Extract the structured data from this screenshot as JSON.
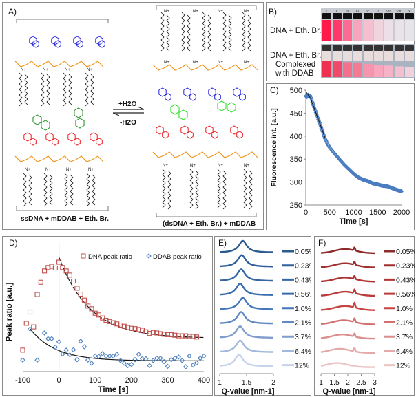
{
  "panel_a": {
    "label": "A)",
    "forward": "+H2O",
    "reverse": "-H2O",
    "left_caption": "ssDNA + mDDAB + Eth. Br.",
    "right_caption": "(dsDNA + Eth. Br.) + mDDAB",
    "colors": {
      "backbone": "#f0961e",
      "base_top": "#2222dd",
      "base_bottom": "#ee1c24",
      "ethidium_left": "#1e8c1e",
      "ethidium_right": "#22dd22",
      "lipid": "#111111"
    }
  },
  "panel_b": {
    "label": "B)",
    "row1_label": "DNA + Eth. Br.",
    "row2_label_lines": [
      "DNA + Eth. Br.",
      "Complexed",
      "with  DDAB"
    ],
    "vial_labels": [
      "I",
      "II",
      "III",
      "IV",
      "V",
      "VI",
      "VII",
      "VIII",
      "IX"
    ],
    "row1_colors": [
      "#ff1a4a",
      "#ff3a6a",
      "#ff6a92",
      "#f7a5bf",
      "#f4c0d0",
      "#efd4de",
      "#ece0e6",
      "#e9e3e7",
      "#e8e5e8"
    ],
    "row2_colors": [
      "#f03050",
      "#f04a6a",
      "#f4708c",
      "#f47a96",
      "#f595ae",
      "#f7a6bd",
      "#f6b2c6",
      "#f4c0d0",
      "#efd2dc"
    ]
  },
  "chart_data": [
    {
      "id": "C",
      "label": "C)",
      "type": "scatter",
      "xlabel": "Time [s]",
      "ylabel": "Fluorescence int. [a.u.]",
      "xlim": [
        0,
        2000
      ],
      "ylim": [
        250,
        500
      ],
      "xticks": [
        "0",
        "500",
        "1000",
        "1500",
        "2000"
      ],
      "yticks": [
        "250",
        "300",
        "350",
        "400",
        "450",
        "500"
      ],
      "x": [
        0,
        25,
        50,
        75,
        100,
        150,
        200,
        250,
        300,
        350,
        400,
        450,
        500,
        600,
        700,
        800,
        900,
        1000,
        1100,
        1200,
        1300,
        1400,
        1500,
        1600,
        1700,
        1800,
        1900,
        2000
      ],
      "y": [
        487,
        485,
        490,
        488,
        487,
        470,
        455,
        440,
        425,
        410,
        395,
        384,
        375,
        362,
        350,
        338,
        328,
        318,
        310,
        305,
        302,
        297,
        295,
        292,
        291,
        287,
        283,
        280
      ],
      "color": "#4a7cc0"
    },
    {
      "id": "D",
      "label": "D)",
      "type": "scatter",
      "xlabel": "Time [s]",
      "ylabel": "Peak ratio [a.u.]",
      "xlim": [
        -100,
        400
      ],
      "ylim": [
        0,
        1
      ],
      "xticks": [
        "-100",
        "0",
        "100",
        "200",
        "300",
        "400"
      ],
      "legend_position": "top-right",
      "series": [
        {
          "name": "DNA peak ratio",
          "color": "#c0504d",
          "x": [
            -100,
            -90,
            -80,
            -70,
            -60,
            -50,
            -40,
            -30,
            -20,
            -10,
            0,
            10,
            20,
            30,
            40,
            50,
            60,
            70,
            80,
            90,
            100,
            110,
            120,
            130,
            140,
            150,
            160,
            170,
            180,
            190,
            200,
            210,
            220,
            230,
            240,
            250,
            260,
            270,
            280,
            290,
            300,
            310,
            320,
            330,
            340,
            350,
            360,
            370,
            380
          ],
          "y": [
            0.18,
            0.405,
            0.5,
            0.375,
            0.647,
            0.75,
            0.845,
            0.874,
            0.884,
            0.87,
            0.919,
            0.874,
            0.845,
            0.81,
            0.76,
            0.7,
            0.65,
            0.6,
            0.55,
            0.527,
            0.49,
            0.475,
            0.45,
            0.43,
            0.42,
            0.41,
            0.4,
            0.39,
            0.38,
            0.37,
            0.363,
            0.36,
            0.353,
            0.347,
            0.334,
            0.32,
            0.328,
            0.324,
            0.318,
            0.313,
            0.31,
            0.309,
            0.305,
            0.3,
            0.3,
            0.3,
            0.295,
            0.295,
            0.29
          ],
          "fit": {
            "a": 0.28,
            "b": 0.68,
            "t0": 0,
            "tau": 85,
            "from": 0,
            "to": 400,
            "dashed": true
          }
        },
        {
          "name": "DDAB peak ratio",
          "color": "#4f81bd",
          "x": [
            -100,
            -80,
            -60,
            -40,
            -30,
            -20,
            -10,
            0,
            10,
            20,
            30,
            40,
            50,
            60,
            70,
            80,
            90,
            100,
            110,
            120,
            130,
            140,
            150,
            160,
            170,
            180,
            190,
            200,
            210,
            220,
            230,
            240,
            250,
            260,
            270,
            280,
            290,
            300,
            310,
            320,
            330,
            340,
            350,
            360,
            370,
            380,
            390,
            400
          ],
          "y": [
            0.097,
            0.357,
            0.097,
            0.324,
            0.276,
            0.276,
            0.205,
            0.25,
            0.147,
            0.18,
            0.14,
            0.183,
            0.1,
            0.255,
            0.208,
            0.097,
            0.07,
            0.13,
            0.127,
            0.15,
            0.13,
            0.13,
            0.13,
            0.145,
            0.093,
            0.07,
            0.05,
            0.06,
            0.1,
            0.145,
            0.108,
            0.108,
            0.05,
            0.093,
            0.112,
            0.112,
            0.083,
            0.044,
            0.1,
            0.112,
            0.122,
            0.093,
            0.04,
            0.13,
            0.054,
            0.073,
            0.112,
            0.13
          ],
          "fit": {
            "a": 0.09,
            "b": 0.27,
            "t0": -80,
            "tau": 70,
            "from": -80,
            "to": 400,
            "dashed": false
          }
        }
      ]
    },
    {
      "id": "E",
      "label": "E)",
      "type": "line",
      "xlabel": "Q-value [nm-1]",
      "xlim": [
        1,
        2
      ],
      "xticks": [
        "1",
        "1.5",
        "2"
      ],
      "series": [
        {
          "name": "0.05%",
          "color": "#2c5a8e",
          "peak": 1.43
        },
        {
          "name": "0.23%",
          "color": "#30609a",
          "peak": 1.41
        },
        {
          "name": "0.43%",
          "color": "#3566a4",
          "peak": 1.4
        },
        {
          "name": "0.56%",
          "color": "#3a6cae",
          "peak": 1.38
        },
        {
          "name": "1.0%",
          "color": "#4477ba",
          "peak": 1.43
        },
        {
          "name": "2.1%",
          "color": "#6288c0",
          "peak": 1.4
        },
        {
          "name": "3.7%",
          "color": "#7f9dcc",
          "peak": 1.38
        },
        {
          "name": "6.4%",
          "color": "#a2b8dc",
          "peak": 1.38
        },
        {
          "name": "12%",
          "color": "#c6d3ea",
          "peak": 1.36
        }
      ]
    },
    {
      "id": "F",
      "label": "F)",
      "type": "line",
      "xlabel": "Q-value [nm-1]",
      "xlim": [
        1,
        3
      ],
      "xticks": [
        "1",
        "1.5",
        "2",
        "2.5",
        "3"
      ],
      "series": [
        {
          "name": "0.05%",
          "color": "#8e2a2a",
          "hump": 1.9,
          "spike": 0.5
        },
        {
          "name": "0.23%",
          "color": "#a02f2f",
          "hump": 1.9,
          "spike": 0.5
        },
        {
          "name": "0.43%",
          "color": "#b03535",
          "hump": 1.9,
          "spike": 0.5
        },
        {
          "name": "0.56%",
          "color": "#bb3b3b",
          "hump": 1.9,
          "spike": 0.6
        },
        {
          "name": "1.0%",
          "color": "#c84444",
          "hump": 1.9,
          "spike": 0.75
        },
        {
          "name": "2.1%",
          "color": "#d27070",
          "hump": 1.85,
          "spike": 0.6
        },
        {
          "name": "3.7%",
          "color": "#dc8e8e",
          "hump": 1.8,
          "spike": 0.5
        },
        {
          "name": "6.4%",
          "color": "#e4aaaa",
          "hump": 1.7,
          "spike": 0.55
        },
        {
          "name": "12%",
          "color": "#ecc4c4",
          "hump": 1.6,
          "spike": 0.1
        }
      ]
    }
  ]
}
